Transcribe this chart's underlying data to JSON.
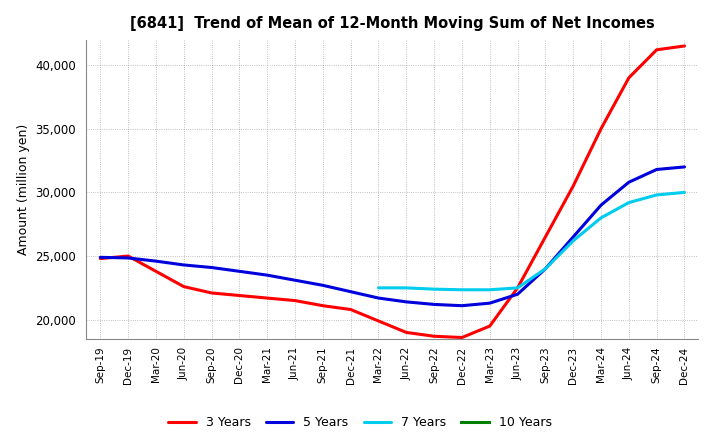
{
  "title": "[6841]  Trend of Mean of 12-Month Moving Sum of Net Incomes",
  "ylabel": "Amount (million yen)",
  "background_color": "#ffffff",
  "grid_color": "#999999",
  "ylim": [
    18500,
    42000
  ],
  "yticks": [
    20000,
    25000,
    30000,
    35000,
    40000
  ],
  "x_labels": [
    "Sep-19",
    "Dec-19",
    "Mar-20",
    "Jun-20",
    "Sep-20",
    "Dec-20",
    "Mar-21",
    "Jun-21",
    "Sep-21",
    "Dec-21",
    "Mar-22",
    "Jun-22",
    "Sep-22",
    "Dec-22",
    "Mar-23",
    "Jun-23",
    "Sep-23",
    "Dec-23",
    "Mar-24",
    "Jun-24",
    "Sep-24",
    "Dec-24"
  ],
  "series": [
    {
      "name": "3 Years",
      "color": "#ff0000",
      "x": [
        0,
        1,
        2,
        3,
        4,
        5,
        6,
        7,
        8,
        9,
        10,
        11,
        12,
        13,
        14,
        15,
        16,
        17,
        18,
        19,
        20,
        21
      ],
      "y": [
        24800,
        25000,
        23800,
        22600,
        22100,
        21900,
        21700,
        21500,
        21100,
        20800,
        19900,
        19000,
        18700,
        18600,
        19500,
        22500,
        26500,
        30500,
        35000,
        39000,
        41200,
        41500
      ]
    },
    {
      "name": "5 Years",
      "color": "#0000dd",
      "x": [
        0,
        1,
        2,
        3,
        4,
        5,
        6,
        7,
        8,
        9,
        10,
        11,
        12,
        13,
        14,
        15,
        16,
        17,
        18,
        19,
        20,
        21
      ],
      "y": [
        24900,
        24850,
        24600,
        24300,
        24100,
        23800,
        23500,
        23100,
        22700,
        22200,
        21700,
        21400,
        21200,
        21100,
        21300,
        22000,
        24000,
        26500,
        29000,
        30800,
        31800,
        32000
      ]
    },
    {
      "name": "7 Years",
      "color": "#00ccee",
      "x": [
        10,
        11,
        12,
        13,
        14,
        15,
        16,
        17,
        18,
        19,
        20,
        21
      ],
      "y": [
        22500,
        22500,
        22400,
        22350,
        22350,
        22500,
        24000,
        26200,
        28000,
        29200,
        29800,
        30000
      ]
    },
    {
      "name": "10 Years",
      "color": "#008000",
      "x": [],
      "y": []
    }
  ]
}
